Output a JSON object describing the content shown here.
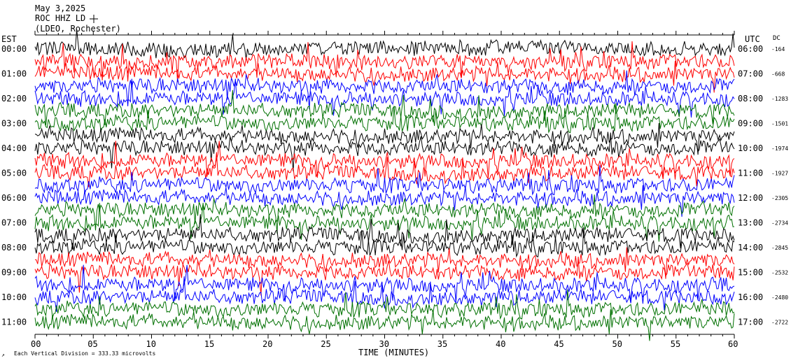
{
  "header": {
    "date": "May 3,2025",
    "station": "ROC HHZ LD",
    "network": "(LDEO, Rochester)"
  },
  "labels": {
    "left_zone": "EST",
    "right_zone": "UTC",
    "dc": "DC",
    "x_title": "TIME (MINUTES)",
    "scale_note": "Each Vertical Division = 333.33 microvolts"
  },
  "colors": {
    "trace_cycle": [
      "#000000",
      "#ff0000",
      "#0000ff",
      "#007000"
    ]
  },
  "chart_data": {
    "type": "line",
    "description_kind": "helicorder",
    "x": {
      "min": 0,
      "max": 60,
      "ticks": [
        "00",
        "05",
        "10",
        "15",
        "20",
        "25",
        "30",
        "35",
        "40",
        "45",
        "50",
        "55",
        "60"
      ]
    },
    "rows": [
      {
        "est": "00:00",
        "utc": "06:00",
        "dc": "-164",
        "color": "#000000"
      },
      {
        "est": "",
        "utc": "",
        "dc": "",
        "color": "#ff0000"
      },
      {
        "est": "01:00",
        "utc": "07:00",
        "dc": "-668",
        "color": "#ff0000"
      },
      {
        "est": "",
        "utc": "",
        "dc": "",
        "color": "#0000ff"
      },
      {
        "est": "02:00",
        "utc": "08:00",
        "dc": "-1283",
        "color": "#0000ff"
      },
      {
        "est": "",
        "utc": "",
        "dc": "",
        "color": "#007000"
      },
      {
        "est": "03:00",
        "utc": "09:00",
        "dc": "-1501",
        "color": "#007000"
      },
      {
        "est": "",
        "utc": "",
        "dc": "",
        "color": "#000000"
      },
      {
        "est": "04:00",
        "utc": "10:00",
        "dc": "-1974",
        "color": "#000000"
      },
      {
        "est": "",
        "utc": "",
        "dc": "",
        "color": "#ff0000"
      },
      {
        "est": "05:00",
        "utc": "11:00",
        "dc": "-1927",
        "color": "#ff0000"
      },
      {
        "est": "",
        "utc": "",
        "dc": "",
        "color": "#0000ff"
      },
      {
        "est": "06:00",
        "utc": "12:00",
        "dc": "-2305",
        "color": "#0000ff"
      },
      {
        "est": "",
        "utc": "",
        "dc": "",
        "color": "#007000"
      },
      {
        "est": "07:00",
        "utc": "13:00",
        "dc": "-2734",
        "color": "#007000"
      },
      {
        "est": "",
        "utc": "",
        "dc": "",
        "color": "#000000"
      },
      {
        "est": "08:00",
        "utc": "14:00",
        "dc": "-2845",
        "color": "#000000"
      },
      {
        "est": "",
        "utc": "",
        "dc": "",
        "color": "#ff0000"
      },
      {
        "est": "09:00",
        "utc": "15:00",
        "dc": "-2532",
        "color": "#ff0000"
      },
      {
        "est": "",
        "utc": "",
        "dc": "",
        "color": "#0000ff"
      },
      {
        "est": "10:00",
        "utc": "16:00",
        "dc": "-2480",
        "color": "#0000ff"
      },
      {
        "est": "",
        "utc": "",
        "dc": "",
        "color": "#007000"
      },
      {
        "est": "11:00",
        "utc": "17:00",
        "dc": "-2722",
        "color": "#007000"
      }
    ]
  }
}
